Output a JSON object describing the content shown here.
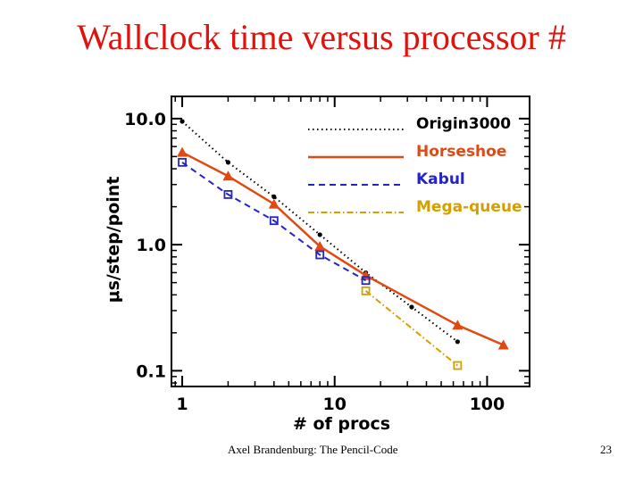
{
  "slide": {
    "title": "Wallclock time versus processor #",
    "footer": "Axel Brandenburg: The Pencil-Code",
    "page_number": "23"
  },
  "chart_data": {
    "type": "line",
    "xlabel": "# of procs",
    "ylabel": "μs/step/point",
    "x_scale": "log",
    "y_scale": "log",
    "xlim": [
      0.85,
      190
    ],
    "ylim": [
      0.075,
      15
    ],
    "x_ticks": [
      {
        "value": 1,
        "label": "1"
      },
      {
        "value": 10,
        "label": "10"
      },
      {
        "value": 100,
        "label": "100"
      }
    ],
    "y_ticks": [
      {
        "value": 0.1,
        "label": "0.1"
      },
      {
        "value": 1,
        "label": "1.0"
      },
      {
        "value": 10,
        "label": "10.0"
      }
    ],
    "grid": false,
    "legend_position": "top-right",
    "series": [
      {
        "name": "Origin3000",
        "color": "#000000",
        "line_style": "dotted",
        "marker": "dot",
        "x": [
          1,
          2,
          4,
          8,
          16,
          32,
          64
        ],
        "y": [
          9.5,
          4.5,
          2.4,
          1.2,
          0.6,
          0.32,
          0.17
        ]
      },
      {
        "name": "Horseshoe",
        "color": "#e04a12",
        "line_style": "solid",
        "marker": "triangle",
        "x": [
          1,
          2,
          4,
          8,
          16,
          64,
          128
        ],
        "y": [
          5.4,
          3.5,
          2.1,
          0.97,
          0.57,
          0.23,
          0.16
        ]
      },
      {
        "name": "Kabul",
        "color": "#2424c8",
        "line_style": "dashed",
        "marker": "square",
        "x": [
          1,
          2,
          4,
          8,
          16
        ],
        "y": [
          4.5,
          2.5,
          1.55,
          0.83,
          0.52
        ]
      },
      {
        "name": "Mega-queue",
        "color": "#d2a000",
        "line_style": "dashdot",
        "marker": "square",
        "x": [
          16,
          64
        ],
        "y": [
          0.43,
          0.11
        ]
      }
    ]
  }
}
